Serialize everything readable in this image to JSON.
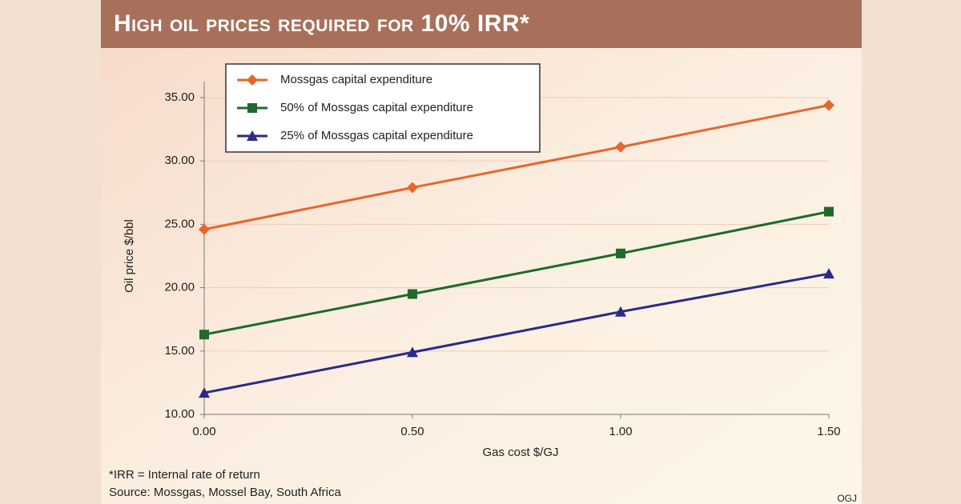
{
  "chart_data": {
    "type": "line",
    "title": "High oil prices required for 10% IRR*",
    "x_label": "Gas cost $/GJ",
    "y_label": "Oil price $/bbl",
    "x": [
      0,
      0.5,
      1,
      1.5
    ],
    "series": [
      {
        "name": "Mossgas capital expenditure",
        "color": "#e8652c",
        "marker": "diamond",
        "values": [
          24.6,
          27.9,
          31.1,
          34.4
        ]
      },
      {
        "name": "50% of Mossgas capital expenditure",
        "color": "#1f6a2c",
        "marker": "square",
        "values": [
          16.3,
          19.5,
          22.7,
          26.0
        ]
      },
      {
        "name": "25% of Mossgas capital expenditure",
        "color": "#2b2a88",
        "marker": "triangle",
        "values": [
          11.7,
          14.9,
          18.1,
          21.1
        ]
      }
    ],
    "xlim": [
      0,
      1.5
    ],
    "xticks": [
      {
        "value": 0,
        "label": "0.00"
      },
      {
        "value": 0.5,
        "label": "0.50"
      },
      {
        "value": 1,
        "label": "1.00"
      },
      {
        "value": 1.5,
        "label": "1.50"
      }
    ],
    "ylim": [
      10,
      35
    ],
    "yticks": [
      {
        "value": 10,
        "label": "10.00"
      },
      {
        "value": 15,
        "label": "15.00"
      },
      {
        "value": 20,
        "label": "20.00"
      },
      {
        "value": 25,
        "label": "25.00"
      },
      {
        "value": 30,
        "label": "30.00"
      },
      {
        "value": 35,
        "label": "35.00"
      }
    ],
    "grid": true,
    "legend": "top-left",
    "notes": [
      "*IRR = Internal rate of return",
      "Source: Mossgas, Mossel Bay, South Africa"
    ],
    "credit": "OGJ"
  }
}
